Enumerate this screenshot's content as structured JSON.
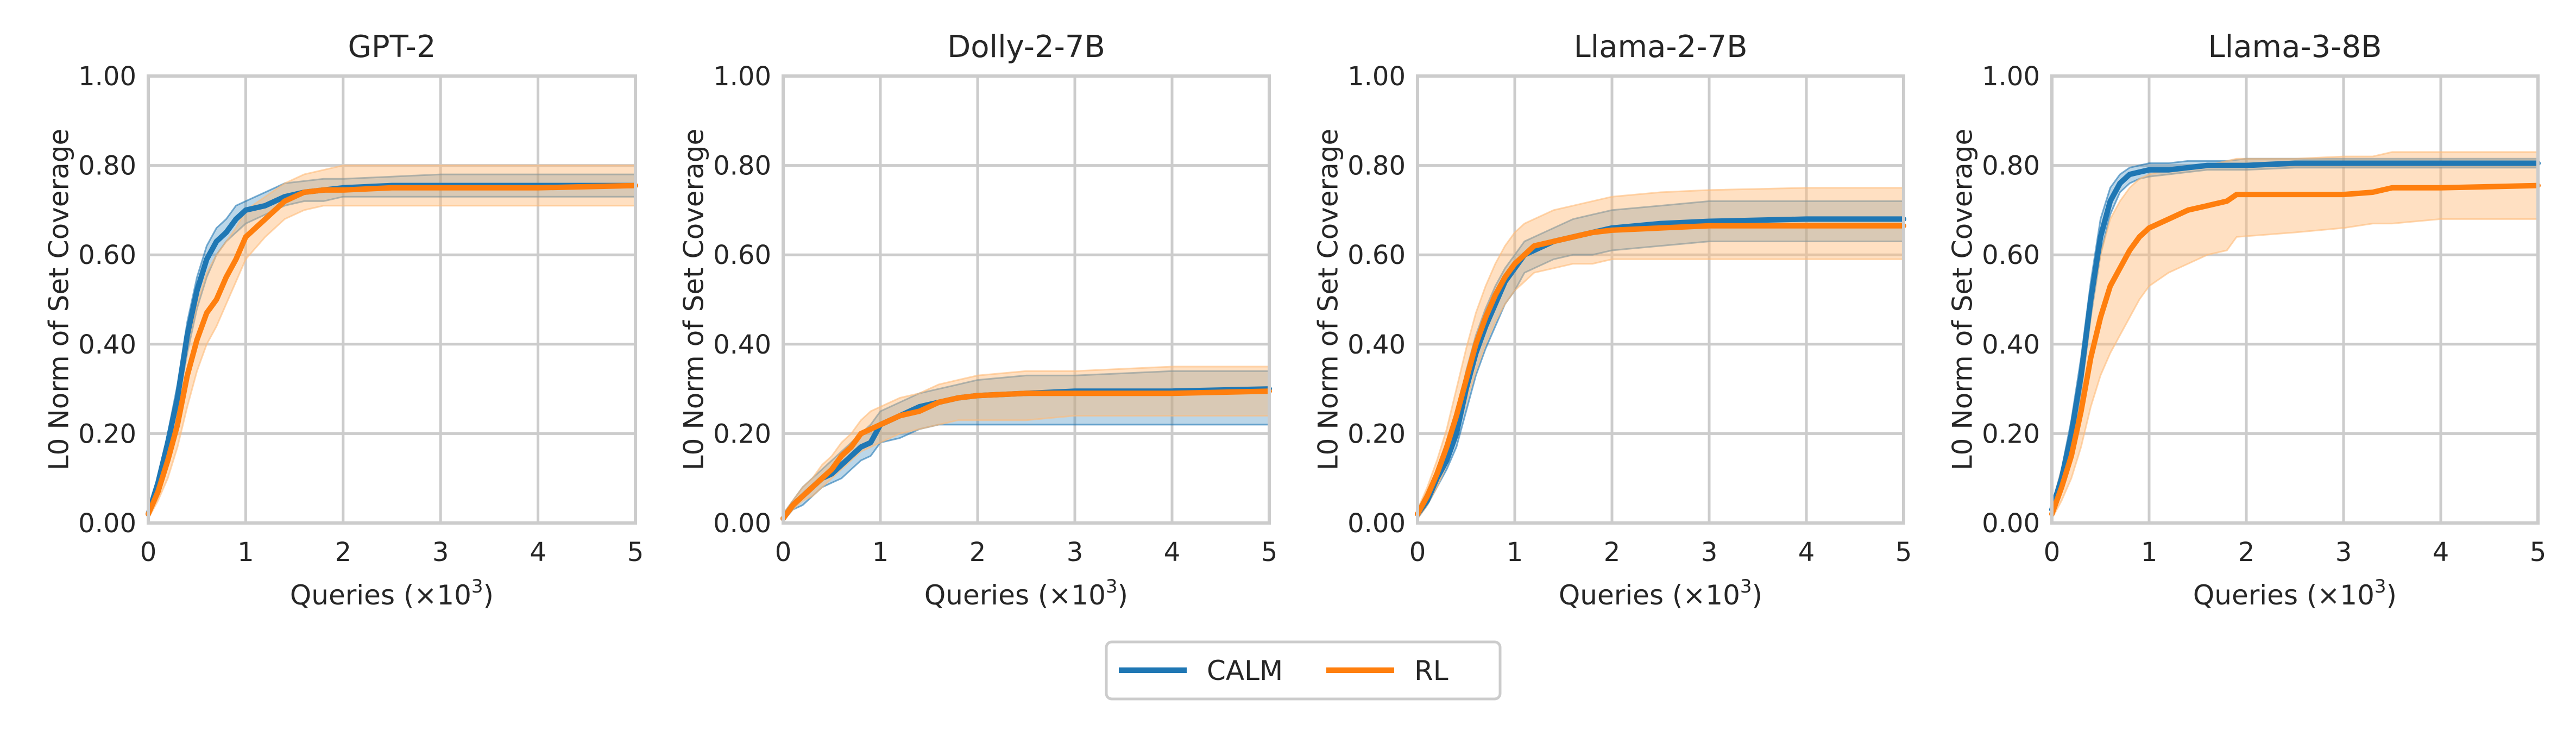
{
  "chart_data": [
    {
      "type": "line",
      "title": "GPT-2",
      "xlabel": "Queries (×10",
      "xlabel_exp": "3",
      "xlabel_close": ")",
      "ylabel": "L0 Norm of Set Coverage",
      "xlim": [
        0,
        5
      ],
      "ylim": [
        0,
        1
      ],
      "xticks": [
        "0",
        "1",
        "2",
        "3",
        "4",
        "5"
      ],
      "yticks": [
        "0.00",
        "0.20",
        "0.40",
        "0.60",
        "0.80",
        "1.00"
      ],
      "grid": true,
      "series": [
        {
          "name": "CALM",
          "x": [
            0,
            0.1,
            0.2,
            0.3,
            0.4,
            0.5,
            0.6,
            0.7,
            0.8,
            0.9,
            1.0,
            1.2,
            1.4,
            1.6,
            1.8,
            2.0,
            2.5,
            3.0,
            4.0,
            5.0
          ],
          "y": [
            0.02,
            0.09,
            0.18,
            0.28,
            0.42,
            0.52,
            0.59,
            0.63,
            0.65,
            0.68,
            0.7,
            0.71,
            0.73,
            0.74,
            0.745,
            0.75,
            0.755,
            0.755,
            0.755,
            0.755
          ],
          "lower": [
            0.02,
            0.08,
            0.16,
            0.26,
            0.38,
            0.48,
            0.55,
            0.6,
            0.63,
            0.65,
            0.67,
            0.69,
            0.71,
            0.72,
            0.72,
            0.73,
            0.73,
            0.73,
            0.73,
            0.73
          ],
          "upper": [
            0.03,
            0.1,
            0.2,
            0.31,
            0.45,
            0.55,
            0.62,
            0.66,
            0.68,
            0.71,
            0.72,
            0.74,
            0.76,
            0.765,
            0.77,
            0.77,
            0.775,
            0.78,
            0.78,
            0.78
          ]
        },
        {
          "name": "RL",
          "x": [
            0,
            0.1,
            0.2,
            0.3,
            0.4,
            0.5,
            0.6,
            0.7,
            0.8,
            0.9,
            1.0,
            1.2,
            1.4,
            1.6,
            1.8,
            2.0,
            2.5,
            3.0,
            4.0,
            5.0
          ],
          "y": [
            0.02,
            0.07,
            0.14,
            0.22,
            0.33,
            0.41,
            0.47,
            0.5,
            0.55,
            0.59,
            0.64,
            0.68,
            0.72,
            0.74,
            0.745,
            0.745,
            0.75,
            0.75,
            0.75,
            0.755
          ],
          "lower": [
            0.01,
            0.05,
            0.1,
            0.17,
            0.26,
            0.34,
            0.4,
            0.44,
            0.49,
            0.54,
            0.59,
            0.64,
            0.68,
            0.7,
            0.71,
            0.71,
            0.71,
            0.71,
            0.71,
            0.71
          ],
          "upper": [
            0.03,
            0.1,
            0.19,
            0.28,
            0.4,
            0.49,
            0.56,
            0.6,
            0.63,
            0.66,
            0.7,
            0.73,
            0.76,
            0.78,
            0.79,
            0.8,
            0.8,
            0.8,
            0.8,
            0.8
          ]
        }
      ]
    },
    {
      "type": "line",
      "title": "Dolly-2-7B",
      "xlabel": "Queries (×10",
      "xlabel_exp": "3",
      "xlabel_close": ")",
      "ylabel": "L0 Norm of Set Coverage",
      "xlim": [
        0,
        5
      ],
      "ylim": [
        0,
        1
      ],
      "xticks": [
        "0",
        "1",
        "2",
        "3",
        "4",
        "5"
      ],
      "yticks": [
        "0.00",
        "0.20",
        "0.40",
        "0.60",
        "0.80",
        "1.00"
      ],
      "grid": true,
      "series": [
        {
          "name": "CALM",
          "x": [
            0,
            0.1,
            0.2,
            0.3,
            0.4,
            0.5,
            0.6,
            0.7,
            0.8,
            0.9,
            1.0,
            1.2,
            1.4,
            1.6,
            1.8,
            2.0,
            2.5,
            3.0,
            4.0,
            5.0
          ],
          "y": [
            0.01,
            0.04,
            0.06,
            0.08,
            0.1,
            0.11,
            0.13,
            0.15,
            0.17,
            0.18,
            0.22,
            0.24,
            0.26,
            0.27,
            0.28,
            0.285,
            0.29,
            0.295,
            0.295,
            0.3
          ],
          "lower": [
            0.005,
            0.03,
            0.04,
            0.06,
            0.08,
            0.09,
            0.1,
            0.12,
            0.14,
            0.15,
            0.18,
            0.19,
            0.21,
            0.22,
            0.22,
            0.22,
            0.22,
            0.22,
            0.22,
            0.22
          ],
          "upper": [
            0.02,
            0.05,
            0.08,
            0.1,
            0.12,
            0.14,
            0.16,
            0.18,
            0.2,
            0.22,
            0.25,
            0.27,
            0.29,
            0.3,
            0.31,
            0.32,
            0.33,
            0.33,
            0.34,
            0.34
          ]
        },
        {
          "name": "RL",
          "x": [
            0,
            0.1,
            0.2,
            0.3,
            0.4,
            0.5,
            0.6,
            0.7,
            0.8,
            0.9,
            1.0,
            1.2,
            1.4,
            1.6,
            1.8,
            2.0,
            2.5,
            3.0,
            4.0,
            5.0
          ],
          "y": [
            0.01,
            0.04,
            0.06,
            0.08,
            0.1,
            0.12,
            0.15,
            0.17,
            0.2,
            0.21,
            0.22,
            0.24,
            0.25,
            0.27,
            0.28,
            0.285,
            0.29,
            0.29,
            0.29,
            0.295
          ],
          "lower": [
            0.005,
            0.03,
            0.05,
            0.06,
            0.08,
            0.1,
            0.12,
            0.14,
            0.16,
            0.17,
            0.18,
            0.2,
            0.21,
            0.22,
            0.23,
            0.23,
            0.23,
            0.24,
            0.24,
            0.24
          ],
          "upper": [
            0.02,
            0.05,
            0.08,
            0.1,
            0.13,
            0.15,
            0.18,
            0.2,
            0.23,
            0.25,
            0.26,
            0.28,
            0.29,
            0.31,
            0.32,
            0.33,
            0.34,
            0.34,
            0.35,
            0.35
          ]
        }
      ]
    },
    {
      "type": "line",
      "title": "Llama-2-7B",
      "xlabel": "Queries (×10",
      "xlabel_exp": "3",
      "xlabel_close": ")",
      "ylabel": "L0 Norm of Set Coverage",
      "xlim": [
        0,
        5
      ],
      "ylim": [
        0,
        1
      ],
      "xticks": [
        "0",
        "1",
        "2",
        "3",
        "4",
        "5"
      ],
      "yticks": [
        "0.00",
        "0.20",
        "0.40",
        "0.60",
        "0.80",
        "1.00"
      ],
      "grid": true,
      "series": [
        {
          "name": "CALM",
          "x": [
            0,
            0.1,
            0.2,
            0.3,
            0.4,
            0.5,
            0.6,
            0.7,
            0.8,
            0.9,
            1.0,
            1.1,
            1.2,
            1.4,
            1.6,
            1.8,
            2.0,
            2.5,
            3.0,
            4.0,
            5.0
          ],
          "y": [
            0.02,
            0.05,
            0.1,
            0.14,
            0.2,
            0.3,
            0.38,
            0.44,
            0.49,
            0.54,
            0.57,
            0.6,
            0.61,
            0.63,
            0.64,
            0.65,
            0.66,
            0.67,
            0.675,
            0.68,
            0.68
          ],
          "lower": [
            0.01,
            0.04,
            0.08,
            0.12,
            0.17,
            0.25,
            0.33,
            0.39,
            0.44,
            0.49,
            0.52,
            0.56,
            0.57,
            0.59,
            0.6,
            0.6,
            0.61,
            0.62,
            0.63,
            0.63,
            0.63
          ],
          "upper": [
            0.03,
            0.07,
            0.12,
            0.17,
            0.24,
            0.34,
            0.42,
            0.48,
            0.53,
            0.57,
            0.6,
            0.63,
            0.64,
            0.66,
            0.68,
            0.69,
            0.7,
            0.71,
            0.72,
            0.72,
            0.72
          ]
        },
        {
          "name": "RL",
          "x": [
            0,
            0.1,
            0.2,
            0.3,
            0.4,
            0.5,
            0.6,
            0.7,
            0.8,
            0.9,
            1.0,
            1.1,
            1.2,
            1.4,
            1.6,
            1.8,
            2.0,
            2.5,
            3.0,
            4.0,
            5.0
          ],
          "y": [
            0.02,
            0.06,
            0.11,
            0.17,
            0.24,
            0.32,
            0.4,
            0.46,
            0.51,
            0.55,
            0.58,
            0.6,
            0.62,
            0.63,
            0.64,
            0.65,
            0.655,
            0.66,
            0.665,
            0.665,
            0.665
          ],
          "lower": [
            0.01,
            0.04,
            0.08,
            0.13,
            0.19,
            0.27,
            0.34,
            0.4,
            0.45,
            0.49,
            0.52,
            0.54,
            0.56,
            0.57,
            0.58,
            0.58,
            0.59,
            0.59,
            0.59,
            0.59,
            0.59
          ],
          "upper": [
            0.03,
            0.08,
            0.14,
            0.21,
            0.3,
            0.39,
            0.47,
            0.53,
            0.58,
            0.62,
            0.65,
            0.67,
            0.68,
            0.7,
            0.71,
            0.72,
            0.73,
            0.74,
            0.745,
            0.75,
            0.75
          ]
        }
      ]
    },
    {
      "type": "line",
      "title": "Llama-3-8B",
      "xlabel": "Queries (×10",
      "xlabel_exp": "3",
      "xlabel_close": ")",
      "ylabel": "L0 Norm of Set Coverage",
      "xlim": [
        0,
        5
      ],
      "ylim": [
        0,
        1
      ],
      "xticks": [
        "0",
        "1",
        "2",
        "3",
        "4",
        "5"
      ],
      "yticks": [
        "0.00",
        "0.20",
        "0.40",
        "0.60",
        "0.80",
        "1.00"
      ],
      "grid": true,
      "series": [
        {
          "name": "CALM",
          "x": [
            0,
            0.1,
            0.2,
            0.3,
            0.4,
            0.5,
            0.6,
            0.7,
            0.8,
            0.9,
            1.0,
            1.2,
            1.4,
            1.6,
            1.8,
            2.0,
            2.5,
            3.0,
            4.0,
            5.0
          ],
          "y": [
            0.03,
            0.1,
            0.2,
            0.33,
            0.5,
            0.64,
            0.72,
            0.76,
            0.78,
            0.785,
            0.79,
            0.79,
            0.795,
            0.8,
            0.8,
            0.8,
            0.805,
            0.805,
            0.805,
            0.805
          ],
          "lower": [
            0.02,
            0.08,
            0.17,
            0.29,
            0.46,
            0.6,
            0.69,
            0.74,
            0.76,
            0.77,
            0.775,
            0.78,
            0.785,
            0.79,
            0.79,
            0.79,
            0.795,
            0.795,
            0.795,
            0.795
          ],
          "upper": [
            0.04,
            0.12,
            0.23,
            0.37,
            0.54,
            0.68,
            0.75,
            0.78,
            0.795,
            0.8,
            0.805,
            0.805,
            0.81,
            0.81,
            0.81,
            0.815,
            0.815,
            0.815,
            0.815,
            0.815
          ]
        },
        {
          "name": "RL",
          "x": [
            0,
            0.1,
            0.2,
            0.3,
            0.4,
            0.5,
            0.6,
            0.7,
            0.8,
            0.9,
            1.0,
            1.2,
            1.4,
            1.6,
            1.8,
            1.9,
            2.5,
            3.0,
            3.3,
            3.5,
            4.0,
            5.0
          ],
          "y": [
            0.02,
            0.08,
            0.15,
            0.25,
            0.37,
            0.46,
            0.53,
            0.57,
            0.61,
            0.64,
            0.66,
            0.68,
            0.7,
            0.71,
            0.72,
            0.735,
            0.735,
            0.735,
            0.74,
            0.75,
            0.75,
            0.755
          ],
          "lower": [
            0.01,
            0.05,
            0.1,
            0.17,
            0.26,
            0.33,
            0.38,
            0.42,
            0.46,
            0.5,
            0.53,
            0.56,
            0.58,
            0.6,
            0.61,
            0.64,
            0.65,
            0.66,
            0.67,
            0.67,
            0.68,
            0.68
          ],
          "upper": [
            0.04,
            0.12,
            0.22,
            0.34,
            0.48,
            0.6,
            0.68,
            0.72,
            0.75,
            0.77,
            0.78,
            0.79,
            0.8,
            0.8,
            0.81,
            0.815,
            0.815,
            0.82,
            0.82,
            0.83,
            0.83,
            0.83
          ]
        }
      ]
    }
  ],
  "legend": {
    "placement": "bottom-center",
    "entries": [
      {
        "name": "CALM",
        "color": "#1f77b4"
      },
      {
        "name": "RL",
        "color": "#ff7f0e"
      }
    ]
  },
  "colors": {
    "CALM": "#1f77b4",
    "RL": "#ff7f0e",
    "CALM_band": "#1f77b4",
    "RL_band": "#ffbb78",
    "grid": "#cccccc",
    "spine": "#cccccc",
    "text": "#262626"
  }
}
